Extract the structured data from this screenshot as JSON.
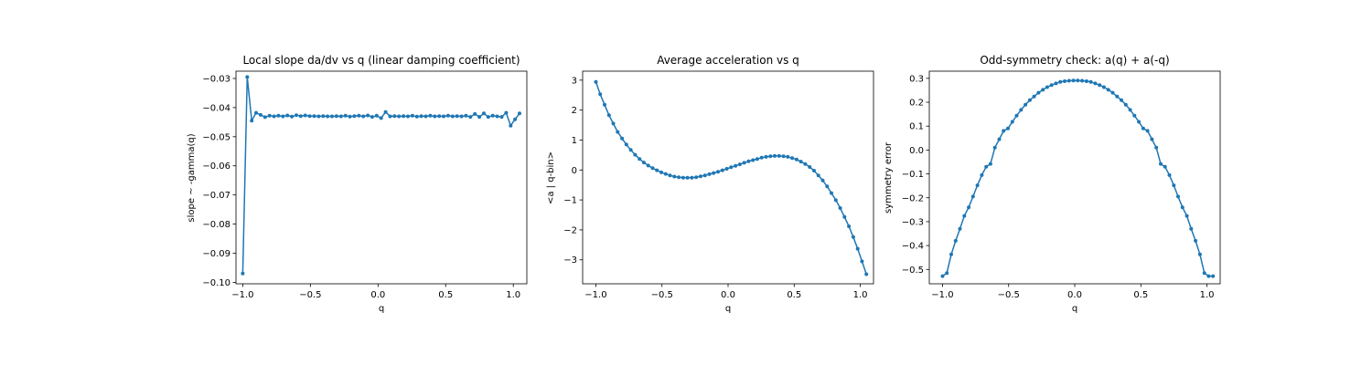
{
  "colors": {
    "series": "#1f77b4",
    "axes": "#000000",
    "background": "#ffffff"
  },
  "chart_data": [
    {
      "type": "line",
      "title": "Local slope da/dv vs q (linear damping coefficient)",
      "xlabel": "q",
      "ylabel": "slope ~ -gamma(q)",
      "xlim": [
        -1.05,
        1.1
      ],
      "ylim": [
        -0.1005,
        -0.0275
      ],
      "xticks": [
        -1.0,
        -0.5,
        0.0,
        0.5,
        1.0
      ],
      "xtick_labels": [
        "−1.0",
        "−0.5",
        "0.0",
        "0.5",
        "1.0"
      ],
      "yticks": [
        -0.1,
        -0.09,
        -0.08,
        -0.07,
        -0.06,
        -0.05,
        -0.04,
        -0.03
      ],
      "ytick_labels": [
        "−0.10",
        "−0.09",
        "−0.08",
        "−0.07",
        "−0.06",
        "−0.05",
        "−0.04",
        "−0.03"
      ],
      "series": [
        {
          "name": "slope",
          "x": [
            -1.0,
            -0.967,
            -0.934,
            -0.901,
            -0.868,
            -0.835,
            -0.802,
            -0.769,
            -0.736,
            -0.703,
            -0.67,
            -0.637,
            -0.604,
            -0.571,
            -0.538,
            -0.505,
            -0.472,
            -0.439,
            -0.406,
            -0.373,
            -0.34,
            -0.307,
            -0.274,
            -0.241,
            -0.208,
            -0.175,
            -0.142,
            -0.109,
            -0.076,
            -0.043,
            -0.01,
            0.023,
            0.056,
            0.089,
            0.122,
            0.155,
            0.188,
            0.221,
            0.254,
            0.287,
            0.32,
            0.353,
            0.386,
            0.419,
            0.452,
            0.485,
            0.518,
            0.551,
            0.584,
            0.617,
            0.65,
            0.683,
            0.716,
            0.749,
            0.782,
            0.815,
            0.848,
            0.881,
            0.914,
            0.947,
            0.98,
            1.013,
            1.046
          ],
          "values": [
            -0.097,
            -0.0295,
            -0.0445,
            -0.0418,
            -0.0425,
            -0.0433,
            -0.0428,
            -0.043,
            -0.0428,
            -0.043,
            -0.0427,
            -0.0431,
            -0.0426,
            -0.0429,
            -0.0427,
            -0.0429,
            -0.0429,
            -0.043,
            -0.0429,
            -0.043,
            -0.043,
            -0.0429,
            -0.043,
            -0.0428,
            -0.0431,
            -0.0429,
            -0.0428,
            -0.043,
            -0.0427,
            -0.0432,
            -0.0428,
            -0.0436,
            -0.0415,
            -0.043,
            -0.0429,
            -0.043,
            -0.0429,
            -0.043,
            -0.0428,
            -0.0431,
            -0.0429,
            -0.043,
            -0.0428,
            -0.043,
            -0.0429,
            -0.043,
            -0.0428,
            -0.043,
            -0.0429,
            -0.043,
            -0.0428,
            -0.0432,
            -0.0422,
            -0.0432,
            -0.042,
            -0.0432,
            -0.0428,
            -0.043,
            -0.0432,
            -0.0418,
            -0.0462,
            -0.044,
            -0.042
          ]
        }
      ]
    },
    {
      "type": "line",
      "title": "Average acceleration vs q",
      "xlabel": "q",
      "ylabel": "<a | q-bin>",
      "xlim": [
        -1.1,
        1.1
      ],
      "ylim": [
        -3.8,
        3.3
      ],
      "xticks": [
        -1.0,
        -0.5,
        0.0,
        0.5,
        1.0
      ],
      "xtick_labels": [
        "−1.0",
        "−0.5",
        "0.0",
        "0.5",
        "1.0"
      ],
      "yticks": [
        -3,
        -2,
        -1,
        0,
        1,
        2,
        3
      ],
      "ytick_labels": [
        "−3",
        "−2",
        "−1",
        "0",
        "1",
        "2",
        "3"
      ],
      "series": [
        {
          "name": "accel",
          "x": [
            -1.0,
            -0.967,
            -0.934,
            -0.901,
            -0.868,
            -0.835,
            -0.802,
            -0.769,
            -0.736,
            -0.703,
            -0.67,
            -0.637,
            -0.604,
            -0.571,
            -0.538,
            -0.505,
            -0.472,
            -0.439,
            -0.406,
            -0.373,
            -0.34,
            -0.307,
            -0.274,
            -0.241,
            -0.208,
            -0.175,
            -0.142,
            -0.109,
            -0.076,
            -0.043,
            -0.01,
            0.023,
            0.056,
            0.089,
            0.122,
            0.155,
            0.188,
            0.221,
            0.254,
            0.287,
            0.32,
            0.353,
            0.386,
            0.419,
            0.452,
            0.485,
            0.518,
            0.551,
            0.584,
            0.617,
            0.65,
            0.683,
            0.716,
            0.749,
            0.782,
            0.815,
            0.848,
            0.881,
            0.914,
            0.947,
            0.98,
            1.013,
            1.046
          ],
          "values": [
            2.94,
            2.53,
            2.18,
            1.83,
            1.55,
            1.27,
            1.05,
            0.85,
            0.67,
            0.51,
            0.37,
            0.25,
            0.15,
            0.06,
            -0.01,
            -0.08,
            -0.13,
            -0.18,
            -0.22,
            -0.24,
            -0.26,
            -0.26,
            -0.26,
            -0.24,
            -0.21,
            -0.18,
            -0.14,
            -0.1,
            -0.06,
            -0.01,
            0.04,
            0.09,
            0.14,
            0.19,
            0.24,
            0.29,
            0.33,
            0.37,
            0.41,
            0.44,
            0.46,
            0.47,
            0.47,
            0.46,
            0.44,
            0.4,
            0.35,
            0.28,
            0.2,
            0.1,
            -0.02,
            -0.18,
            -0.35,
            -0.55,
            -0.77,
            -1.01,
            -1.27,
            -1.57,
            -1.88,
            -2.24,
            -2.63,
            -3.05,
            -3.48
          ]
        }
      ]
    },
    {
      "type": "line",
      "title": "Odd-symmetry check: a(q) + a(-q)",
      "xlabel": "q",
      "ylabel": "symmetry error",
      "xlim": [
        -1.1,
        1.1
      ],
      "ylim": [
        -0.56,
        0.33
      ],
      "xticks": [
        -1.0,
        -0.5,
        0.0,
        0.5,
        1.0
      ],
      "xtick_labels": [
        "−1.0",
        "−0.5",
        "0.0",
        "0.5",
        "1.0"
      ],
      "yticks": [
        -0.5,
        -0.4,
        -0.3,
        -0.2,
        -0.1,
        0.0,
        0.1,
        0.2,
        0.3
      ],
      "ytick_labels": [
        "−0.5",
        "−0.4",
        "−0.3",
        "−0.2",
        "−0.1",
        "0.0",
        "0.1",
        "0.2",
        "0.3"
      ],
      "series": [
        {
          "name": "symmetry",
          "x": [
            -1.0,
            -0.967,
            -0.934,
            -0.901,
            -0.868,
            -0.835,
            -0.802,
            -0.769,
            -0.736,
            -0.703,
            -0.67,
            -0.637,
            -0.604,
            -0.571,
            -0.538,
            -0.505,
            -0.472,
            -0.439,
            -0.406,
            -0.373,
            -0.34,
            -0.307,
            -0.274,
            -0.241,
            -0.208,
            -0.175,
            -0.142,
            -0.109,
            -0.076,
            -0.043,
            -0.01,
            0.023,
            0.056,
            0.089,
            0.122,
            0.155,
            0.188,
            0.221,
            0.254,
            0.287,
            0.32,
            0.353,
            0.386,
            0.419,
            0.452,
            0.485,
            0.518,
            0.551,
            0.584,
            0.617,
            0.65,
            0.683,
            0.716,
            0.749,
            0.782,
            0.815,
            0.848,
            0.881,
            0.914,
            0.947,
            0.98,
            1.013,
            1.046
          ],
          "values": [
            -0.528,
            -0.515,
            -0.437,
            -0.38,
            -0.33,
            -0.276,
            -0.24,
            -0.195,
            -0.148,
            -0.105,
            -0.07,
            -0.058,
            0.01,
            0.045,
            0.08,
            0.09,
            0.118,
            0.144,
            0.168,
            0.19,
            0.209,
            0.224,
            0.24,
            0.252,
            0.263,
            0.272,
            0.279,
            0.285,
            0.288,
            0.29,
            0.291,
            0.291,
            0.29,
            0.288,
            0.285,
            0.279,
            0.272,
            0.263,
            0.252,
            0.24,
            0.224,
            0.209,
            0.19,
            0.168,
            0.144,
            0.118,
            0.09,
            0.08,
            0.045,
            0.01,
            -0.058,
            -0.07,
            -0.105,
            -0.148,
            -0.195,
            -0.24,
            -0.276,
            -0.33,
            -0.38,
            -0.437,
            -0.515,
            -0.528,
            -0.528
          ]
        }
      ]
    }
  ]
}
